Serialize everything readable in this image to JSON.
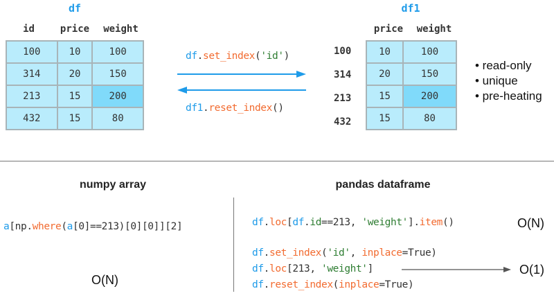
{
  "df": {
    "title": "df",
    "columns": [
      "id",
      "price",
      "weight"
    ],
    "rows": [
      [
        "100",
        "10",
        "100"
      ],
      [
        "314",
        "20",
        "150"
      ],
      [
        "213",
        "15",
        "200"
      ],
      [
        "432",
        "15",
        "80"
      ]
    ],
    "highlight": {
      "row": 2,
      "col": 2
    }
  },
  "df1": {
    "title": "df1",
    "columns": [
      "price",
      "weight"
    ],
    "index": [
      "100",
      "314",
      "213",
      "432"
    ],
    "rows": [
      [
        "10",
        "100"
      ],
      [
        "20",
        "150"
      ],
      [
        "15",
        "200"
      ],
      [
        "15",
        "80"
      ]
    ],
    "highlight": {
      "row": 2,
      "col": 1
    }
  },
  "arrows": {
    "forward": [
      {
        "t": "df",
        "c": "blue"
      },
      {
        "t": ".",
        "c": "dark"
      },
      {
        "t": "set_index",
        "c": "orange"
      },
      {
        "t": "(",
        "c": "dark"
      },
      {
        "t": "'id'",
        "c": "green"
      },
      {
        "t": ")",
        "c": "dark"
      }
    ],
    "backward": [
      {
        "t": "df1",
        "c": "blue"
      },
      {
        "t": ".",
        "c": "dark"
      },
      {
        "t": "reset_index",
        "c": "orange"
      },
      {
        "t": "()",
        "c": "dark"
      }
    ],
    "color": "#1e9be9"
  },
  "properties": [
    "• read-only",
    "• unique",
    "• pre-heating"
  ],
  "numpy": {
    "heading": "numpy array",
    "code": [
      {
        "t": "a",
        "c": "blue"
      },
      {
        "t": "[np.",
        "c": "dark"
      },
      {
        "t": "where",
        "c": "orange"
      },
      {
        "t": "(",
        "c": "dark"
      },
      {
        "t": "a",
        "c": "blue"
      },
      {
        "t": "[0]==213)[0][0]][2]",
        "c": "dark"
      }
    ],
    "complexity": "O(N)"
  },
  "pandas": {
    "heading": "pandas dataframe",
    "line1": [
      {
        "t": "df",
        "c": "blue"
      },
      {
        "t": ".",
        "c": "dark"
      },
      {
        "t": "loc",
        "c": "orange"
      },
      {
        "t": "[",
        "c": "dark"
      },
      {
        "t": "df",
        "c": "blue"
      },
      {
        "t": ".",
        "c": "dark"
      },
      {
        "t": "id",
        "c": "green"
      },
      {
        "t": "==213, ",
        "c": "dark"
      },
      {
        "t": "'weight'",
        "c": "green"
      },
      {
        "t": "].",
        "c": "dark"
      },
      {
        "t": "item",
        "c": "orange"
      },
      {
        "t": "()",
        "c": "dark"
      }
    ],
    "line1_complexity": "O(N)",
    "line2": [
      {
        "t": "df",
        "c": "blue"
      },
      {
        "t": ".",
        "c": "dark"
      },
      {
        "t": "set_index",
        "c": "orange"
      },
      {
        "t": "(",
        "c": "dark"
      },
      {
        "t": "'id'",
        "c": "green"
      },
      {
        "t": ", ",
        "c": "dark"
      },
      {
        "t": "inplace",
        "c": "orange"
      },
      {
        "t": "=True)",
        "c": "dark"
      }
    ],
    "line3": [
      {
        "t": "df",
        "c": "blue"
      },
      {
        "t": ".",
        "c": "dark"
      },
      {
        "t": "loc",
        "c": "orange"
      },
      {
        "t": "[213, ",
        "c": "dark"
      },
      {
        "t": "'weight'",
        "c": "green"
      },
      {
        "t": "]",
        "c": "dark"
      }
    ],
    "line3_complexity": "O(1)",
    "line4": [
      {
        "t": "df",
        "c": "blue"
      },
      {
        "t": ".",
        "c": "dark"
      },
      {
        "t": "reset_index",
        "c": "orange"
      },
      {
        "t": "(",
        "c": "dark"
      },
      {
        "t": "inplace",
        "c": "orange"
      },
      {
        "t": "=True)",
        "c": "dark"
      }
    ]
  }
}
